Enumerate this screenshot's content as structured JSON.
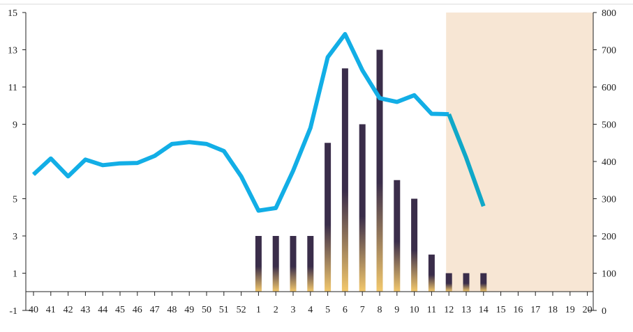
{
  "chart_data": {
    "type": "bar+line",
    "title": "",
    "xlabel": "",
    "ylabel_left": "",
    "ylabel_right": "",
    "categories": [
      "40",
      "41",
      "42",
      "43",
      "44",
      "45",
      "46",
      "47",
      "48",
      "49",
      "50",
      "51",
      "52",
      "1",
      "2",
      "3",
      "4",
      "5",
      "6",
      "7",
      "8",
      "9",
      "10",
      "11",
      "12",
      "13",
      "14",
      "15",
      "16",
      "17",
      "18",
      "19",
      "20"
    ],
    "left_axis": {
      "range": [
        -1,
        15
      ],
      "ticks": [
        -1,
        1,
        3,
        5,
        9,
        11,
        13,
        15
      ]
    },
    "right_axis": {
      "range": [
        0,
        800
      ],
      "ticks": [
        0,
        100,
        200,
        300,
        400,
        500,
        600,
        700,
        800
      ]
    },
    "bars": {
      "axis": "left",
      "values": [
        null,
        null,
        null,
        null,
        null,
        null,
        null,
        null,
        null,
        null,
        null,
        null,
        null,
        3,
        3,
        3,
        3,
        8,
        12,
        9,
        13,
        6,
        5,
        2,
        1,
        1,
        1,
        null,
        null,
        null,
        null,
        null,
        null
      ],
      "gradient_top": "#3a2d4a",
      "gradient_bottom": "#f3c86c"
    },
    "line": {
      "axis": "right",
      "values": [
        365,
        408,
        360,
        405,
        390,
        395,
        396,
        415,
        447,
        452,
        447,
        428,
        360,
        268,
        275,
        375,
        490,
        680,
        742,
        645,
        570,
        560,
        578,
        528,
        527,
        null,
        null,
        null,
        null,
        null,
        null,
        null,
        null
      ],
      "projected": [
        null,
        null,
        null,
        null,
        null,
        null,
        null,
        null,
        null,
        null,
        null,
        null,
        null,
        null,
        null,
        null,
        null,
        null,
        null,
        null,
        null,
        null,
        null,
        null,
        527,
        410,
        280,
        null,
        null,
        null,
        null,
        null,
        null
      ],
      "color": "#12aee6",
      "projected_color": "#10a8c8"
    },
    "shaded_region": {
      "from_category": "12",
      "to_category": "20",
      "color": "#f7e6d4"
    },
    "grid": false,
    "legend": "none"
  }
}
